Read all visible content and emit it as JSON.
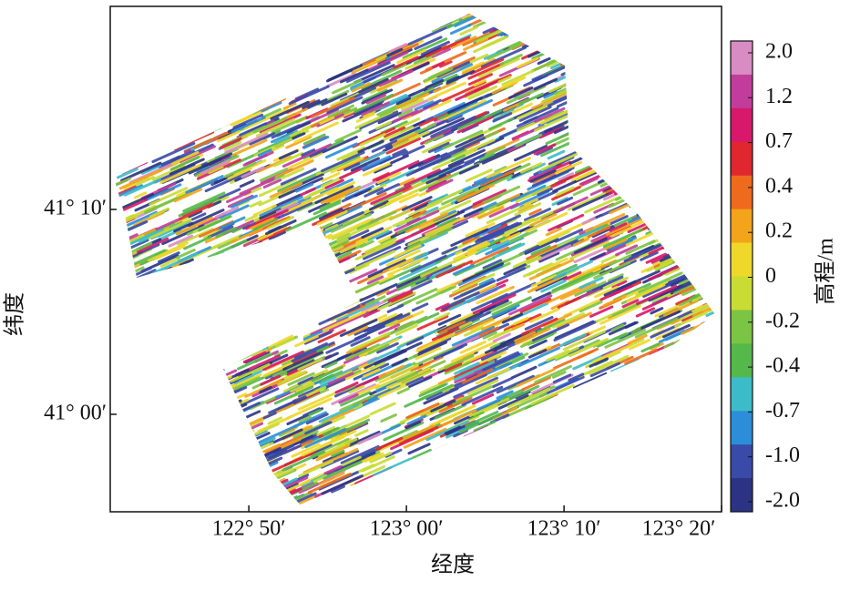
{
  "chart_data": {
    "type": "track-map",
    "xlabel": "经度",
    "ylabel": "纬度",
    "xlim": [
      122.6867,
      123.3333
    ],
    "ylim": [
      40.9207,
      41.3319
    ],
    "xticks": [
      {
        "value": 122.8333,
        "label": "122° 50′"
      },
      {
        "value": 123.0,
        "label": "123° 00′"
      },
      {
        "value": 123.1667,
        "label": "123° 10′"
      },
      {
        "value": 123.3333,
        "label": "123° 20′"
      }
    ],
    "yticks": [
      {
        "value": 41.0,
        "label": "41° 00′"
      },
      {
        "value": 41.1667,
        "label": "41° 10′"
      }
    ],
    "colorbar": {
      "label": "高程/m",
      "ticks": [
        {
          "value": 2.0,
          "label": "2.0"
        },
        {
          "value": 1.2,
          "label": "1.2"
        },
        {
          "value": 0.7,
          "label": "0.7"
        },
        {
          "value": 0.4,
          "label": "0.4"
        },
        {
          "value": 0.2,
          "label": "0.2"
        },
        0,
        -0.2,
        -0.4,
        -0.7,
        {
          "value": -1.0,
          "label": "-1.0"
        },
        {
          "value": -2.0,
          "label": "-2.0"
        }
      ],
      "colors": [
        "#d98cc4",
        "#c23c9c",
        "#d8186a",
        "#e0262e",
        "#ee6a1c",
        "#f3a41a",
        "#f0d82a",
        "#c8dc34",
        "#7cc444",
        "#54b84a",
        "#3cbcc8",
        "#2c8ed8",
        "#3a4aa8",
        "#2b3484"
      ]
    }
  }
}
